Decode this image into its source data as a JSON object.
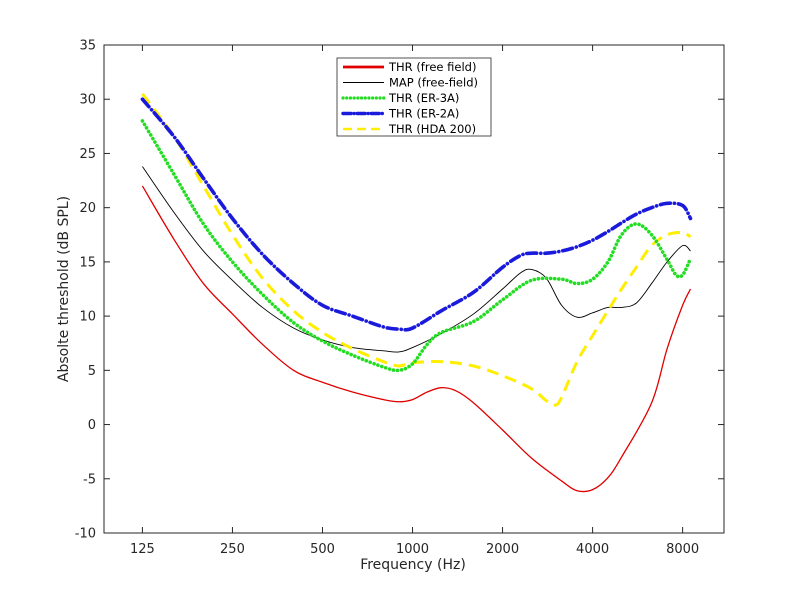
{
  "chart_data": {
    "type": "line",
    "title": "",
    "xlabel": "Frequency (Hz)",
    "ylabel": "Absolte threshold (dB SPL)",
    "x_scale": "log2",
    "xlim": [
      93,
      11000
    ],
    "ylim": [
      -10,
      35
    ],
    "x_ticks": [
      125,
      250,
      500,
      1000,
      2000,
      4000,
      8000
    ],
    "x_tick_labels": [
      "125",
      "250",
      "500",
      "1000",
      "2000",
      "4000",
      "8000"
    ],
    "y_ticks": [
      -10,
      -5,
      0,
      5,
      10,
      15,
      20,
      25,
      30,
      35
    ],
    "y_tick_labels": [
      "-10",
      "-5",
      "0",
      "5",
      "10",
      "15",
      "20",
      "25",
      "30",
      "35"
    ],
    "grid": false,
    "legend_position": "top-center",
    "series": [
      {
        "name": "THR (free field)",
        "color": "#e00000",
        "style": "solid",
        "points": [
          [
            125,
            22.0
          ],
          [
            160,
            17.0
          ],
          [
            200,
            13.0
          ],
          [
            250,
            10.2
          ],
          [
            315,
            7.4
          ],
          [
            400,
            5.0
          ],
          [
            500,
            3.9
          ],
          [
            630,
            3.0
          ],
          [
            800,
            2.3
          ],
          [
            900,
            2.1
          ],
          [
            1000,
            2.3
          ],
          [
            1120,
            3.0
          ],
          [
            1250,
            3.4
          ],
          [
            1400,
            3.1
          ],
          [
            1600,
            2.0
          ],
          [
            2000,
            -0.5
          ],
          [
            2500,
            -3.1
          ],
          [
            3150,
            -5.2
          ],
          [
            3550,
            -6.1
          ],
          [
            4000,
            -6.0
          ],
          [
            4500,
            -4.9
          ],
          [
            5000,
            -3.0
          ],
          [
            6300,
            2.0
          ],
          [
            7100,
            7.0
          ],
          [
            8000,
            11.0
          ],
          [
            8500,
            12.5
          ]
        ]
      },
      {
        "name": "MAP (free-field)",
        "color": "#000000",
        "style": "solid",
        "points": [
          [
            125,
            23.8
          ],
          [
            160,
            19.5
          ],
          [
            200,
            16.0
          ],
          [
            250,
            13.3
          ],
          [
            315,
            10.8
          ],
          [
            400,
            8.9
          ],
          [
            500,
            7.8
          ],
          [
            630,
            7.1
          ],
          [
            800,
            6.8
          ],
          [
            900,
            6.7
          ],
          [
            1000,
            7.1
          ],
          [
            1250,
            8.4
          ],
          [
            1600,
            10.2
          ],
          [
            2000,
            12.5
          ],
          [
            2300,
            14.0
          ],
          [
            2500,
            14.3
          ],
          [
            2800,
            13.5
          ],
          [
            3150,
            11.0
          ],
          [
            3550,
            9.9
          ],
          [
            4000,
            10.3
          ],
          [
            4500,
            10.8
          ],
          [
            5000,
            10.8
          ],
          [
            5600,
            11.2
          ],
          [
            6300,
            13.0
          ],
          [
            7100,
            15.0
          ],
          [
            8000,
            16.5
          ],
          [
            8500,
            16.0
          ]
        ]
      },
      {
        "name": "THR (ER-3A)",
        "color": "#22dd22",
        "style": "dotted",
        "points": [
          [
            125,
            28.0
          ],
          [
            160,
            23.0
          ],
          [
            200,
            18.5
          ],
          [
            250,
            15.0
          ],
          [
            315,
            12.0
          ],
          [
            400,
            9.4
          ],
          [
            500,
            7.7
          ],
          [
            630,
            6.4
          ],
          [
            800,
            5.3
          ],
          [
            900,
            5.0
          ],
          [
            1000,
            5.6
          ],
          [
            1120,
            7.4
          ],
          [
            1250,
            8.5
          ],
          [
            1600,
            9.5
          ],
          [
            2000,
            11.5
          ],
          [
            2500,
            13.3
          ],
          [
            3150,
            13.4
          ],
          [
            3550,
            13.0
          ],
          [
            4000,
            13.4
          ],
          [
            4500,
            15.0
          ],
          [
            5000,
            17.5
          ],
          [
            5600,
            18.5
          ],
          [
            6300,
            17.5
          ],
          [
            7100,
            15.2
          ],
          [
            7600,
            13.8
          ],
          [
            8000,
            13.8
          ],
          [
            8500,
            15.3
          ]
        ]
      },
      {
        "name": "THR (ER-2A)",
        "color": "#1a1adc",
        "style": "dashdot",
        "points": [
          [
            125,
            30.0
          ],
          [
            160,
            26.5
          ],
          [
            200,
            22.7
          ],
          [
            250,
            19.0
          ],
          [
            315,
            15.7
          ],
          [
            400,
            13.0
          ],
          [
            500,
            11.0
          ],
          [
            630,
            10.0
          ],
          [
            800,
            9.0
          ],
          [
            900,
            8.8
          ],
          [
            1000,
            8.9
          ],
          [
            1250,
            10.5
          ],
          [
            1600,
            12.2
          ],
          [
            2000,
            14.5
          ],
          [
            2300,
            15.6
          ],
          [
            2500,
            15.8
          ],
          [
            2800,
            15.8
          ],
          [
            3150,
            16.0
          ],
          [
            3550,
            16.4
          ],
          [
            4000,
            17.0
          ],
          [
            4500,
            17.8
          ],
          [
            5000,
            18.6
          ],
          [
            5600,
            19.4
          ],
          [
            6300,
            20.0
          ],
          [
            7100,
            20.4
          ],
          [
            8000,
            20.2
          ],
          [
            8500,
            19.0
          ]
        ]
      },
      {
        "name": "THR (HDA 200)",
        "color": "#ffee00",
        "style": "dashed",
        "points": [
          [
            125,
            30.5
          ],
          [
            160,
            26.5
          ],
          [
            200,
            22.0
          ],
          [
            250,
            17.5
          ],
          [
            315,
            13.5
          ],
          [
            400,
            10.5
          ],
          [
            500,
            8.5
          ],
          [
            630,
            7.0
          ],
          [
            800,
            5.8
          ],
          [
            900,
            5.4
          ],
          [
            1000,
            5.7
          ],
          [
            1250,
            5.8
          ],
          [
            1600,
            5.4
          ],
          [
            2000,
            4.5
          ],
          [
            2500,
            3.3
          ],
          [
            2800,
            2.2
          ],
          [
            3000,
            1.8
          ],
          [
            3150,
            2.5
          ],
          [
            3550,
            5.8
          ],
          [
            4000,
            8.2
          ],
          [
            4500,
            10.5
          ],
          [
            5000,
            12.5
          ],
          [
            5600,
            14.5
          ],
          [
            6300,
            16.5
          ],
          [
            7100,
            17.5
          ],
          [
            8000,
            17.7
          ],
          [
            8500,
            17.3
          ]
        ]
      }
    ]
  }
}
